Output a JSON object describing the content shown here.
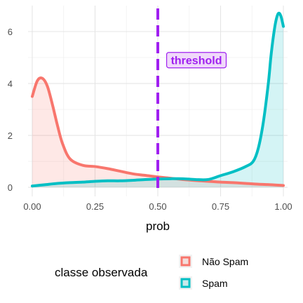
{
  "chart_data": {
    "type": "area",
    "xlabel": "prob",
    "ylabel": "",
    "xlim": [
      -0.0167,
      1.0167
    ],
    "ylim": [
      -0.35,
      7.0
    ],
    "x_ticks": [
      0.0,
      0.25,
      0.5,
      0.75,
      1.0
    ],
    "x_tick_labels": [
      "0.00",
      "0.25",
      "0.50",
      "0.75",
      "1.00"
    ],
    "y_ticks": [
      0,
      2,
      4,
      6
    ],
    "y_tick_labels": [
      "0",
      "2",
      "4",
      "6"
    ],
    "grid": true,
    "legend": {
      "title": "classe observada",
      "position": "bottom",
      "entries": [
        "Não Spam",
        "Spam"
      ]
    },
    "series": [
      {
        "name": "Não Spam",
        "color": "#F8766D",
        "x": [
          0.0,
          0.02,
          0.04,
          0.06,
          0.08,
          0.1,
          0.12,
          0.15,
          0.2,
          0.25,
          0.3,
          0.35,
          0.4,
          0.45,
          0.5,
          0.55,
          0.6,
          0.65,
          0.7,
          0.75,
          0.8,
          0.85,
          0.9,
          0.95,
          1.0
        ],
        "values": [
          3.5,
          4.1,
          4.2,
          3.9,
          3.2,
          2.4,
          1.7,
          1.1,
          0.85,
          0.8,
          0.72,
          0.62,
          0.52,
          0.46,
          0.4,
          0.35,
          0.3,
          0.26,
          0.23,
          0.2,
          0.18,
          0.15,
          0.12,
          0.1,
          0.07
        ]
      },
      {
        "name": "Spam",
        "color": "#00BFC4",
        "x": [
          0.0,
          0.05,
          0.1,
          0.15,
          0.2,
          0.25,
          0.3,
          0.35,
          0.4,
          0.45,
          0.5,
          0.55,
          0.6,
          0.65,
          0.7,
          0.75,
          0.8,
          0.85,
          0.88,
          0.9,
          0.92,
          0.94,
          0.95,
          0.96,
          0.97,
          0.98,
          0.99,
          1.0
        ],
        "values": [
          0.05,
          0.1,
          0.15,
          0.18,
          0.2,
          0.23,
          0.25,
          0.25,
          0.27,
          0.3,
          0.32,
          0.33,
          0.33,
          0.3,
          0.3,
          0.45,
          0.6,
          0.8,
          1.0,
          1.5,
          2.5,
          4.0,
          5.0,
          5.8,
          6.4,
          6.7,
          6.6,
          6.2
        ]
      }
    ],
    "annotations": [
      {
        "type": "vline",
        "x": 0.5,
        "color": "#A020F0",
        "style": "dashed"
      },
      {
        "type": "label",
        "text": "threshold",
        "x": 0.51,
        "y": 4.9,
        "color": "#A020F0"
      }
    ]
  }
}
